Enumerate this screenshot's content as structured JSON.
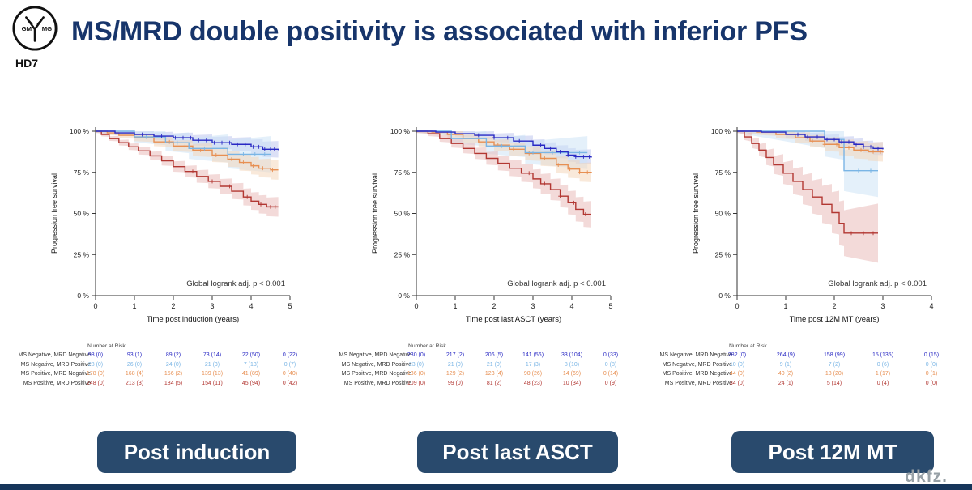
{
  "header": {
    "title": "MS/MRD double positivity is associated with inferior PFS",
    "logo": {
      "left": "GM",
      "right": "MG",
      "trial": "HD7"
    }
  },
  "footer": {
    "brand": "dkfz."
  },
  "buttons": [
    {
      "label": "Post induction"
    },
    {
      "label": "Post last ASCT"
    },
    {
      "label": "Post 12M MT"
    }
  ],
  "colors": {
    "title": "#17356b",
    "button_bg": "#294a6d",
    "bottom_bar": "#16355a",
    "series_blue": "#2929c4",
    "series_lightblue": "#7ab5e5",
    "series_orange": "#e78f52",
    "series_red": "#b23732"
  },
  "chart_data": [
    {
      "type": "line",
      "subtype": "kaplan-meier",
      "title": "",
      "xlabel": "Time post induction (years)",
      "ylabel": "Progression free survival",
      "annotation": "Global logrank adj. p < 0.001",
      "xlim": [
        0,
        5
      ],
      "xticks": [
        0,
        1,
        2,
        3,
        4,
        5
      ],
      "ylim": [
        0,
        100
      ],
      "yticks": [
        0,
        25,
        50,
        75,
        100
      ],
      "ytick_labels": [
        "0 %",
        "25 %",
        "50 %",
        "75 %",
        "100 %"
      ],
      "grid": false,
      "legend_position": "none",
      "risk_table_title": "Number at Risk",
      "series": [
        {
          "name": "MS Negative, MRD Negative",
          "color": "#2929c4",
          "ci_color": "#b9c2ee",
          "ci": [
            1,
            5
          ],
          "points": [
            [
              0,
              100
            ],
            [
              0.5,
              99
            ],
            [
              1,
              98
            ],
            [
              1.5,
              97
            ],
            [
              2,
              96
            ],
            [
              2.5,
              94.5
            ],
            [
              3,
              93
            ],
            [
              3.5,
              92
            ],
            [
              4,
              90.5
            ],
            [
              4.3,
              89
            ],
            [
              4.7,
              88.5
            ]
          ],
          "censor_x": [
            1.2,
            1.7,
            2.05,
            2.25,
            2.45,
            2.65,
            2.85,
            3.05,
            3.25,
            3.45,
            3.65,
            3.85,
            4.05,
            4.2,
            4.35,
            4.5,
            4.6
          ],
          "at_risk": [
            "98 (0)",
            "93 (1)",
            "89 (2)",
            "73 (14)",
            "22 (50)",
            "0 (22)"
          ]
        },
        {
          "name": "MS Negative, MRD Positive",
          "color": "#7ab5e5",
          "ci_color": "#c9e2f5",
          "ci": [
            1,
            11
          ],
          "points": [
            [
              0,
              100
            ],
            [
              0.8,
              100
            ],
            [
              1,
              96.5
            ],
            [
              1.6,
              96.5
            ],
            [
              1.8,
              93
            ],
            [
              2.2,
              93
            ],
            [
              2.4,
              89.5
            ],
            [
              3.2,
              89.5
            ],
            [
              3.4,
              86
            ],
            [
              4.5,
              86
            ]
          ],
          "censor_x": [
            1.3,
            2.1,
            2.8,
            3.3,
            3.8,
            4.1,
            4.35
          ],
          "at_risk": [
            "28 (0)",
            "26 (0)",
            "24 (0)",
            "21 (3)",
            "7 (13)",
            "0 (7)"
          ]
        },
        {
          "name": "MS Positive, MRD Negative",
          "color": "#e78f52",
          "ci_color": "#f3d3b6",
          "ci": [
            1,
            6
          ],
          "points": [
            [
              0,
              100
            ],
            [
              0.3,
              99
            ],
            [
              0.6,
              97.5
            ],
            [
              1,
              96
            ],
            [
              1.5,
              93.5
            ],
            [
              2,
              91
            ],
            [
              2.5,
              88.5
            ],
            [
              3,
              85.5
            ],
            [
              3.4,
              83
            ],
            [
              3.7,
              81
            ],
            [
              4,
              79
            ],
            [
              4.2,
              77.5
            ],
            [
              4.5,
              76.5
            ],
            [
              4.7,
              76.5
            ]
          ],
          "censor_x": [
            1.9,
            2.3,
            2.7,
            3.1,
            3.5,
            3.8,
            4.05,
            4.3,
            4.55
          ],
          "at_risk": [
            "178 (0)",
            "168 (4)",
            "156 (2)",
            "139 (13)",
            "41 (89)",
            "0 (40)"
          ]
        },
        {
          "name": "MS Positive, MRD Positive",
          "color": "#b23732",
          "ci_color": "#e7b6b4",
          "ci": [
            1,
            6
          ],
          "points": [
            [
              0,
              100
            ],
            [
              0.15,
              98
            ],
            [
              0.35,
              95.5
            ],
            [
              0.6,
              93
            ],
            [
              0.85,
              90.5
            ],
            [
              1.1,
              88
            ],
            [
              1.4,
              85
            ],
            [
              1.7,
              82
            ],
            [
              2,
              78.5
            ],
            [
              2.3,
              75.5
            ],
            [
              2.6,
              72.5
            ],
            [
              2.9,
              69.5
            ],
            [
              3.2,
              66.5
            ],
            [
              3.5,
              63.5
            ],
            [
              3.8,
              60
            ],
            [
              4,
              57.5
            ],
            [
              4.2,
              55.5
            ],
            [
              4.4,
              54
            ],
            [
              4.7,
              54
            ]
          ],
          "censor_x": [
            2.5,
            3.0,
            3.45,
            3.9,
            4.25,
            4.5,
            4.62
          ],
          "at_risk": [
            "248 (0)",
            "213 (3)",
            "184 (5)",
            "154 (11)",
            "45 (94)",
            "0 (42)"
          ]
        }
      ]
    },
    {
      "type": "line",
      "subtype": "kaplan-meier",
      "title": "",
      "xlabel": "Time post last ASCT (years)",
      "ylabel": "Progression free survival",
      "annotation": "Global logrank adj. p < 0.001",
      "xlim": [
        0,
        5
      ],
      "xticks": [
        0,
        1,
        2,
        3,
        4,
        5
      ],
      "ylim": [
        0,
        100
      ],
      "yticks": [
        0,
        25,
        50,
        75,
        100
      ],
      "ytick_labels": [
        "0 %",
        "25 %",
        "50 %",
        "75 %",
        "100 %"
      ],
      "grid": false,
      "legend_position": "none",
      "risk_table_title": "Number at Risk",
      "series": [
        {
          "name": "MS Negative, MRD Negative",
          "color": "#2929c4",
          "ci_color": "#b9c2ee",
          "ci": [
            1,
            4.5
          ],
          "points": [
            [
              0,
              100
            ],
            [
              0.5,
              99.5
            ],
            [
              1,
              98.5
            ],
            [
              1.5,
              97.5
            ],
            [
              2,
              96
            ],
            [
              2.5,
              94
            ],
            [
              3,
              91.5
            ],
            [
              3.3,
              89.5
            ],
            [
              3.6,
              87.5
            ],
            [
              3.9,
              85.5
            ],
            [
              4.1,
              84.5
            ],
            [
              4.5,
              84
            ]
          ],
          "censor_x": [
            1.6,
            2.0,
            2.35,
            2.65,
            2.95,
            3.2,
            3.45,
            3.7,
            3.9,
            4.1,
            4.3,
            4.45
          ],
          "at_risk": [
            "230 (0)",
            "217 (2)",
            "206 (5)",
            "141 (56)",
            "33 (104)",
            "0 (33)"
          ]
        },
        {
          "name": "MS Negative, MRD Positive",
          "color": "#7ab5e5",
          "ci_color": "#c9e2f5",
          "ci": [
            1,
            10
          ],
          "points": [
            [
              0,
              100
            ],
            [
              0.7,
              100
            ],
            [
              0.9,
              95.5
            ],
            [
              1.6,
              95.5
            ],
            [
              1.8,
              91
            ],
            [
              2.6,
              91
            ],
            [
              2.8,
              87
            ],
            [
              4.4,
              87
            ]
          ],
          "censor_x": [
            2.2,
            3.0,
            3.5,
            3.9,
            4.2
          ],
          "at_risk": [
            "23 (0)",
            "21 (0)",
            "21 (0)",
            "17 (3)",
            "8 (10)",
            "0 (8)"
          ]
        },
        {
          "name": "MS Positive, MRD Negative",
          "color": "#e78f52",
          "ci_color": "#f3d3b6",
          "ci": [
            1,
            6
          ],
          "points": [
            [
              0,
              100
            ],
            [
              0.4,
              99.5
            ],
            [
              0.8,
              98
            ],
            [
              1.2,
              95.5
            ],
            [
              1.6,
              93.5
            ],
            [
              2,
              91.5
            ],
            [
              2.4,
              89
            ],
            [
              2.8,
              86.5
            ],
            [
              3.2,
              83.5
            ],
            [
              3.6,
              79.5
            ],
            [
              3.9,
              77
            ],
            [
              4.2,
              75
            ],
            [
              4.5,
              74.5
            ]
          ],
          "censor_x": [
            2.1,
            2.5,
            2.9,
            3.3,
            3.65,
            3.95,
            4.2,
            4.4
          ],
          "at_risk": [
            "136 (0)",
            "129 (2)",
            "123 (4)",
            "90 (26)",
            "14 (69)",
            "0 (14)"
          ]
        },
        {
          "name": "MS Positive, MRD Positive",
          "color": "#b23732",
          "ci_color": "#e7b6b4",
          "ci": [
            1,
            8
          ],
          "points": [
            [
              0,
              100
            ],
            [
              0.3,
              98.5
            ],
            [
              0.6,
              95.5
            ],
            [
              0.9,
              92.5
            ],
            [
              1.2,
              89.5
            ],
            [
              1.5,
              86.5
            ],
            [
              1.8,
              83.5
            ],
            [
              2.1,
              80.5
            ],
            [
              2.4,
              77.5
            ],
            [
              2.7,
              74.5
            ],
            [
              3,
              71
            ],
            [
              3.2,
              68
            ],
            [
              3.45,
              64.5
            ],
            [
              3.7,
              60.5
            ],
            [
              3.9,
              56.5
            ],
            [
              4.1,
              52.5
            ],
            [
              4.3,
              49.5
            ],
            [
              4.5,
              49.5
            ]
          ],
          "censor_x": [
            2.9,
            3.3,
            3.7,
            4.05,
            4.35
          ],
          "at_risk": [
            "109 (0)",
            "99 (0)",
            "81 (2)",
            "48 (23)",
            "10 (34)",
            "0 (9)"
          ]
        }
      ]
    },
    {
      "type": "line",
      "subtype": "kaplan-meier",
      "title": "",
      "xlabel": "Time post 12M MT (years)",
      "ylabel": "Progression free survival",
      "annotation": "Global logrank adj. p < 0.001",
      "xlim": [
        0,
        4
      ],
      "xticks": [
        0,
        1,
        2,
        3,
        4
      ],
      "ylim": [
        0,
        100
      ],
      "yticks": [
        0,
        25,
        50,
        75,
        100
      ],
      "ytick_labels": [
        "0 %",
        "25 %",
        "50 %",
        "75 %",
        "100 %"
      ],
      "grid": false,
      "legend_position": "none",
      "risk_table_title": "Number at Risk",
      "series": [
        {
          "name": "MS Negative, MRD Negative",
          "color": "#2929c4",
          "ci_color": "#b9c2ee",
          "ci": [
            1,
            4
          ],
          "points": [
            [
              0,
              100
            ],
            [
              0.5,
              99.5
            ],
            [
              1,
              98
            ],
            [
              1.4,
              96.5
            ],
            [
              1.8,
              95
            ],
            [
              2.1,
              93.5
            ],
            [
              2.4,
              92
            ],
            [
              2.6,
              90.5
            ],
            [
              2.8,
              89.5
            ],
            [
              3,
              89
            ]
          ],
          "censor_x": [
            1.25,
            1.45,
            1.65,
            1.85,
            2.0,
            2.15,
            2.3,
            2.45,
            2.6,
            2.75,
            2.9
          ],
          "at_risk": [
            "282 (0)",
            "264 (9)",
            "158 (99)",
            "15 (135)",
            "0 (15)"
          ]
        },
        {
          "name": "MS Negative, MRD Positive",
          "color": "#7ab5e5",
          "ci_color": "#c9e2f5",
          "ci": [
            1,
            16
          ],
          "points": [
            [
              0,
              100
            ],
            [
              1.6,
              100
            ],
            [
              1.8,
              95
            ],
            [
              2.1,
              95
            ],
            [
              2.2,
              76
            ],
            [
              2.9,
              76
            ]
          ],
          "censor_x": [
            2.5,
            2.75
          ],
          "at_risk": [
            "10 (0)",
            "9 (1)",
            "7 (2)",
            "0 (6)",
            "0 (0)"
          ]
        },
        {
          "name": "MS Positive, MRD Negative",
          "color": "#e78f52",
          "ci_color": "#f3d3b6",
          "ci": [
            1,
            6
          ],
          "points": [
            [
              0,
              100
            ],
            [
              0.4,
              99.5
            ],
            [
              0.8,
              98
            ],
            [
              1.2,
              96
            ],
            [
              1.5,
              94
            ],
            [
              1.8,
              92
            ],
            [
              2.1,
              90
            ],
            [
              2.4,
              88.5
            ],
            [
              2.7,
              87.5
            ],
            [
              3,
              87
            ]
          ],
          "censor_x": [
            1.55,
            1.8,
            2.05,
            2.3,
            2.55,
            2.8,
            2.95
          ],
          "at_risk": [
            "44 (0)",
            "40 (2)",
            "18 (20)",
            "1 (17)",
            "0 (1)"
          ]
        },
        {
          "name": "MS Positive, MRD Positive",
          "color": "#b23732",
          "ci_color": "#e7b6b4",
          "ci": [
            1,
            18
          ],
          "points": [
            [
              0,
              100
            ],
            [
              0.15,
              96.5
            ],
            [
              0.3,
              92.5
            ],
            [
              0.45,
              88.5
            ],
            [
              0.6,
              84
            ],
            [
              0.75,
              79.5
            ],
            [
              0.95,
              74.5
            ],
            [
              1.15,
              69.5
            ],
            [
              1.35,
              64.5
            ],
            [
              1.55,
              60
            ],
            [
              1.75,
              55.5
            ],
            [
              1.95,
              50.5
            ],
            [
              2.1,
              44
            ],
            [
              2.2,
              38
            ],
            [
              2.9,
              38
            ]
          ],
          "censor_x": [
            2.35,
            2.6,
            2.8
          ],
          "at_risk": [
            "34 (0)",
            "24 (1)",
            "5 (14)",
            "0 (4)",
            "0 (0)"
          ]
        }
      ]
    }
  ]
}
